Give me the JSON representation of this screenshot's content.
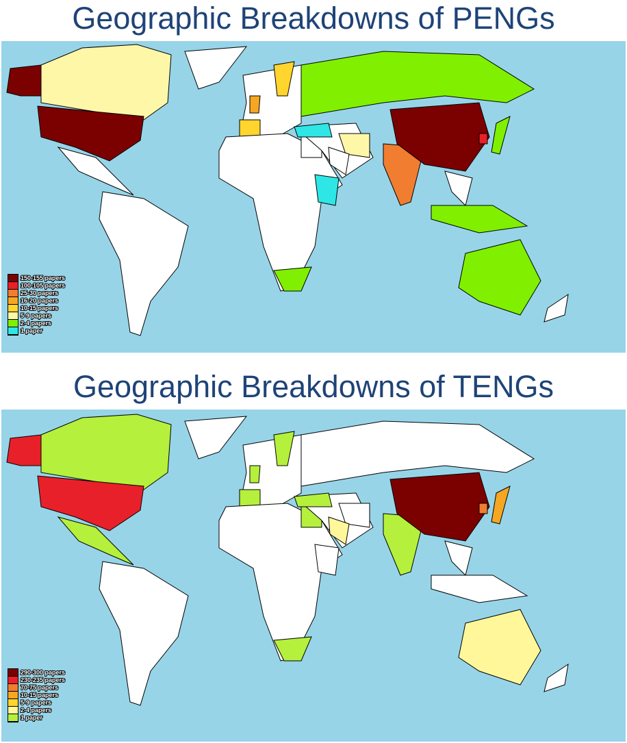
{
  "maps": [
    {
      "title": "Geographic Breakdowns of PENGs",
      "legend": [
        {
          "label": "150-155 papers",
          "color": "#7b0000"
        },
        {
          "label": "100-105 papers",
          "color": "#e8202a"
        },
        {
          "label": "25-30 papers",
          "color": "#f07d30"
        },
        {
          "label": "16-20 papers",
          "color": "#f5a623"
        },
        {
          "label": "10-15 papers",
          "color": "#ffd52e"
        },
        {
          "label": "5-9 papers",
          "color": "#fff7a8"
        },
        {
          "label": "2-4 papers",
          "color": "#80f000"
        },
        {
          "label": "1 paper",
          "color": "#2ee6e6"
        }
      ]
    },
    {
      "title": "Geographic Breakdowns of TENGs",
      "legend": [
        {
          "label": "290-300 papers",
          "color": "#7b0000"
        },
        {
          "label": "230-235 papers",
          "color": "#e8202a"
        },
        {
          "label": "70-75 papers",
          "color": "#f07d30"
        },
        {
          "label": "10-15 papers",
          "color": "#f5a623"
        },
        {
          "label": "5-9 papers",
          "color": "#ffd52e"
        },
        {
          "label": "2-4 papers",
          "color": "#fff799"
        },
        {
          "label": "1 paper",
          "color": "#b5f03c"
        }
      ]
    }
  ]
}
